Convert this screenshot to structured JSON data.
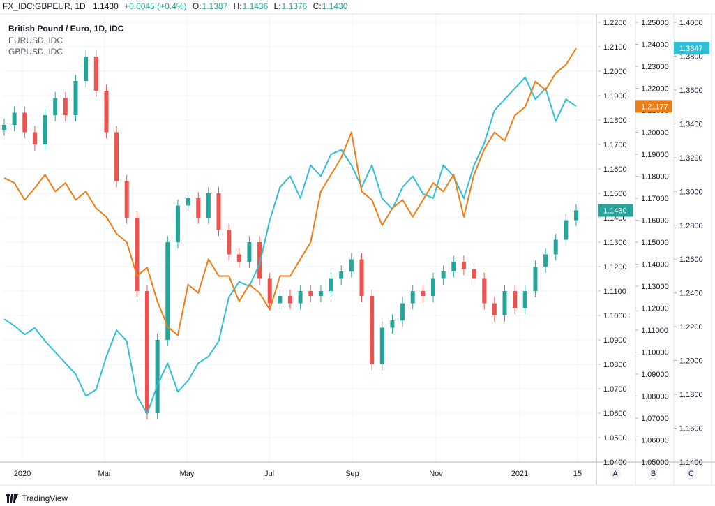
{
  "header": {
    "symbol": "FX_IDC:GBPEUR, 1D",
    "last": "1.1430",
    "change": "+0.0045 (+0.4%)",
    "o_label": "O:",
    "o": "1.1387",
    "h_label": "H:",
    "h": "1.1436",
    "l_label": "L:",
    "l": "1.1376",
    "c_label": "C:",
    "c": "1.1430"
  },
  "legend": {
    "main": "British Pound / Euro, 1D, IDC",
    "series2": "EURUSD, IDC",
    "series3": "GBPUSD, IDC"
  },
  "brand": "TradingView",
  "colors": {
    "up": "#26a69a",
    "down": "#ef5350",
    "eurusd": "#2fbfd6",
    "gbpusd": "#ef7d16",
    "last_tag": "#26a69a",
    "grid": "#f0f3fa",
    "axis": "#b2b5be"
  },
  "chart_data": {
    "type": "line",
    "x_labels": [
      "2020",
      "Mar",
      "May",
      "Jul",
      "Sep",
      "Nov",
      "2021",
      "15"
    ],
    "axes": {
      "A": {
        "series": "GBPEUR",
        "ylim": [
          1.04,
          1.22
        ],
        "ticks": [
          "1.2200",
          "1.2100",
          "1.2000",
          "1.1900",
          "1.1800",
          "1.1700",
          "1.1600",
          "1.1500",
          "1.1400",
          "1.1300",
          "1.1200",
          "1.1100",
          "1.1000",
          "1.0900",
          "1.0800",
          "1.0700",
          "1.0600",
          "1.0500",
          "1.0400"
        ],
        "last_tag": "1.1430"
      },
      "B": {
        "series": "EURUSD",
        "ylim": [
          1.05,
          1.25
        ],
        "ticks": [
          "1.25000",
          "1.24000",
          "1.23000",
          "1.22000",
          "1.21000",
          "1.20000",
          "1.19000",
          "1.18000",
          "1.17000",
          "1.16000",
          "1.15000",
          "1.14000",
          "1.13000",
          "1.12000",
          "1.11000",
          "1.10000",
          "1.09000",
          "1.08000",
          "1.07000",
          "1.06000",
          "1.05000"
        ],
        "last_tag": "1.21177"
      },
      "C": {
        "series": "GBPUSD",
        "ylim": [
          1.14,
          1.4
        ],
        "ticks": [
          "1.4000",
          "1.3800",
          "1.3600",
          "1.3400",
          "1.3200",
          "1.3000",
          "1.2800",
          "1.2600",
          "1.2400",
          "1.2200",
          "1.2000",
          "1.1800",
          "1.1600",
          "1.1400"
        ],
        "last_tag": "1.3847"
      }
    },
    "scale_buttons": [
      "A",
      "B",
      "C"
    ],
    "series": [
      {
        "name": "British Pound / Euro",
        "kind": "candle",
        "axis": "A",
        "x": [
          0,
          7,
          14,
          21,
          28,
          35,
          42,
          49,
          56,
          63,
          70,
          77,
          84,
          91,
          98,
          105,
          112,
          119,
          126,
          133,
          140,
          147,
          154,
          161,
          168,
          175,
          182,
          189,
          196,
          203,
          210,
          217,
          224,
          231,
          238,
          245,
          252,
          259,
          266,
          273,
          280,
          287,
          294,
          301,
          308,
          315,
          322,
          329,
          336,
          343,
          350,
          357,
          364,
          371,
          378,
          385,
          392
        ],
        "close": [
          1.178,
          1.183,
          1.175,
          1.17,
          1.182,
          1.189,
          1.182,
          1.196,
          1.206,
          1.192,
          1.175,
          1.155,
          1.14,
          1.11,
          1.06,
          1.09,
          1.13,
          1.145,
          1.148,
          1.14,
          1.15,
          1.135,
          1.125,
          1.122,
          1.13,
          1.115,
          1.105,
          1.108,
          1.105,
          1.11,
          1.108,
          1.11,
          1.115,
          1.118,
          1.123,
          1.108,
          1.08,
          1.095,
          1.098,
          1.105,
          1.11,
          1.108,
          1.115,
          1.118,
          1.122,
          1.119,
          1.115,
          1.105,
          1.1,
          1.11,
          1.103,
          1.11,
          1.12,
          1.125,
          1.131,
          1.139,
          1.143
        ]
      },
      {
        "name": "EURUSD",
        "kind": "line",
        "axis": "B",
        "x": [
          0,
          7,
          14,
          21,
          28,
          35,
          42,
          49,
          56,
          63,
          70,
          77,
          84,
          91,
          98,
          105,
          112,
          119,
          126,
          133,
          140,
          147,
          154,
          161,
          168,
          175,
          182,
          189,
          196,
          203,
          210,
          217,
          224,
          231,
          238,
          245,
          252,
          259,
          266,
          273,
          280,
          287,
          294,
          301,
          308,
          315,
          322,
          329,
          336,
          343,
          350,
          357,
          364,
          371,
          378,
          385,
          392
        ],
        "values": [
          1.115,
          1.112,
          1.108,
          1.111,
          1.105,
          1.1,
          1.095,
          1.09,
          1.08,
          1.083,
          1.098,
          1.11,
          1.105,
          1.08,
          1.072,
          1.085,
          1.095,
          1.082,
          1.087,
          1.095,
          1.098,
          1.105,
          1.125,
          1.132,
          1.13,
          1.14,
          1.16,
          1.175,
          1.18,
          1.17,
          1.185,
          1.18,
          1.19,
          1.192,
          1.185,
          1.175,
          1.185,
          1.17,
          1.165,
          1.175,
          1.18,
          1.172,
          1.17,
          1.185,
          1.18,
          1.17,
          1.185,
          1.195,
          1.21,
          1.215,
          1.22,
          1.225,
          1.215,
          1.22,
          1.205,
          1.215,
          1.2118
        ]
      },
      {
        "name": "GBPUSD",
        "kind": "line",
        "axis": "C",
        "x": [
          0,
          7,
          14,
          21,
          28,
          35,
          42,
          49,
          56,
          63,
          70,
          77,
          84,
          91,
          98,
          105,
          112,
          119,
          126,
          133,
          140,
          147,
          154,
          161,
          168,
          175,
          182,
          189,
          196,
          203,
          210,
          217,
          224,
          231,
          238,
          245,
          252,
          259,
          266,
          273,
          280,
          287,
          294,
          301,
          308,
          315,
          322,
          329,
          336,
          343,
          350,
          357,
          364,
          371,
          378,
          385,
          392
        ],
        "values": [
          1.308,
          1.305,
          1.295,
          1.302,
          1.31,
          1.3,
          1.305,
          1.295,
          1.3,
          1.29,
          1.285,
          1.275,
          1.27,
          1.25,
          1.255,
          1.235,
          1.22,
          1.215,
          1.245,
          1.24,
          1.26,
          1.25,
          1.25,
          1.235,
          1.245,
          1.24,
          1.23,
          1.25,
          1.25,
          1.26,
          1.27,
          1.3,
          1.31,
          1.32,
          1.335,
          1.3,
          1.295,
          1.28,
          1.29,
          1.295,
          1.285,
          1.295,
          1.305,
          1.3,
          1.31,
          1.285,
          1.31,
          1.325,
          1.335,
          1.33,
          1.345,
          1.35,
          1.365,
          1.36,
          1.37,
          1.375,
          1.3847
        ]
      }
    ]
  }
}
